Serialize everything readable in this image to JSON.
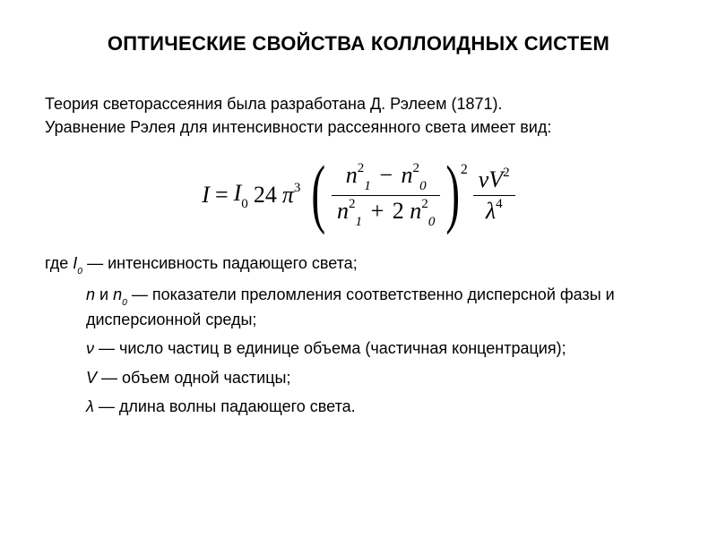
{
  "title": "ОПТИЧЕСКИЕ СВОЙСТВА КОЛЛОИДНЫХ СИСТЕМ",
  "intro1": "Теория светорассеяния была разработана Д. Рэлеем (1871).",
  "intro2": "Уравнение Рэлея для интенсивности рассеянного света имеет вид:",
  "formula": {
    "lhs_var": "I",
    "eq": "=",
    "I0_var": "I",
    "I0_sub": "0",
    "coeff": "24",
    "pi": "π",
    "pi_exp": "3",
    "frac1_num_a_var": "n",
    "frac1_num_a_sub": "1",
    "frac1_num_a_sup": "2",
    "minus": "−",
    "frac1_num_b_var": "n",
    "frac1_num_b_sub": "0",
    "frac1_num_b_sup": "2",
    "frac1_den_a_var": "n",
    "frac1_den_a_sub": "1",
    "frac1_den_a_sup": "2",
    "plus": "+",
    "two": "2",
    "frac1_den_b_var": "n",
    "frac1_den_b_sub": "0",
    "frac1_den_b_sup": "2",
    "paren_exp": "2",
    "nu": "ν",
    "V": "V",
    "V_exp": "2",
    "lambda": "λ",
    "lambda_exp": "4"
  },
  "where_prefix": "где ",
  "where_I0_var": "I",
  "where_I0_sub": "0",
  "where_I0_text": " — интенсивность падающего света;",
  "defs": {
    "d1_n": "n",
    "d1_and": " и ",
    "d1_n0": "n",
    "d1_n0_sub": "0",
    "d1_text": " — показатели преломления соответственно дисперсной фазы и дисперсионной среды;",
    "d2_nu": "ν",
    "d2_text": " — число частиц в единице объема (частичная концентрация);",
    "d3_V": "V",
    "d3_text": " — объем одной частицы;",
    "d4_lambda": "λ",
    "d4_text": " — длина волны падающего света."
  }
}
